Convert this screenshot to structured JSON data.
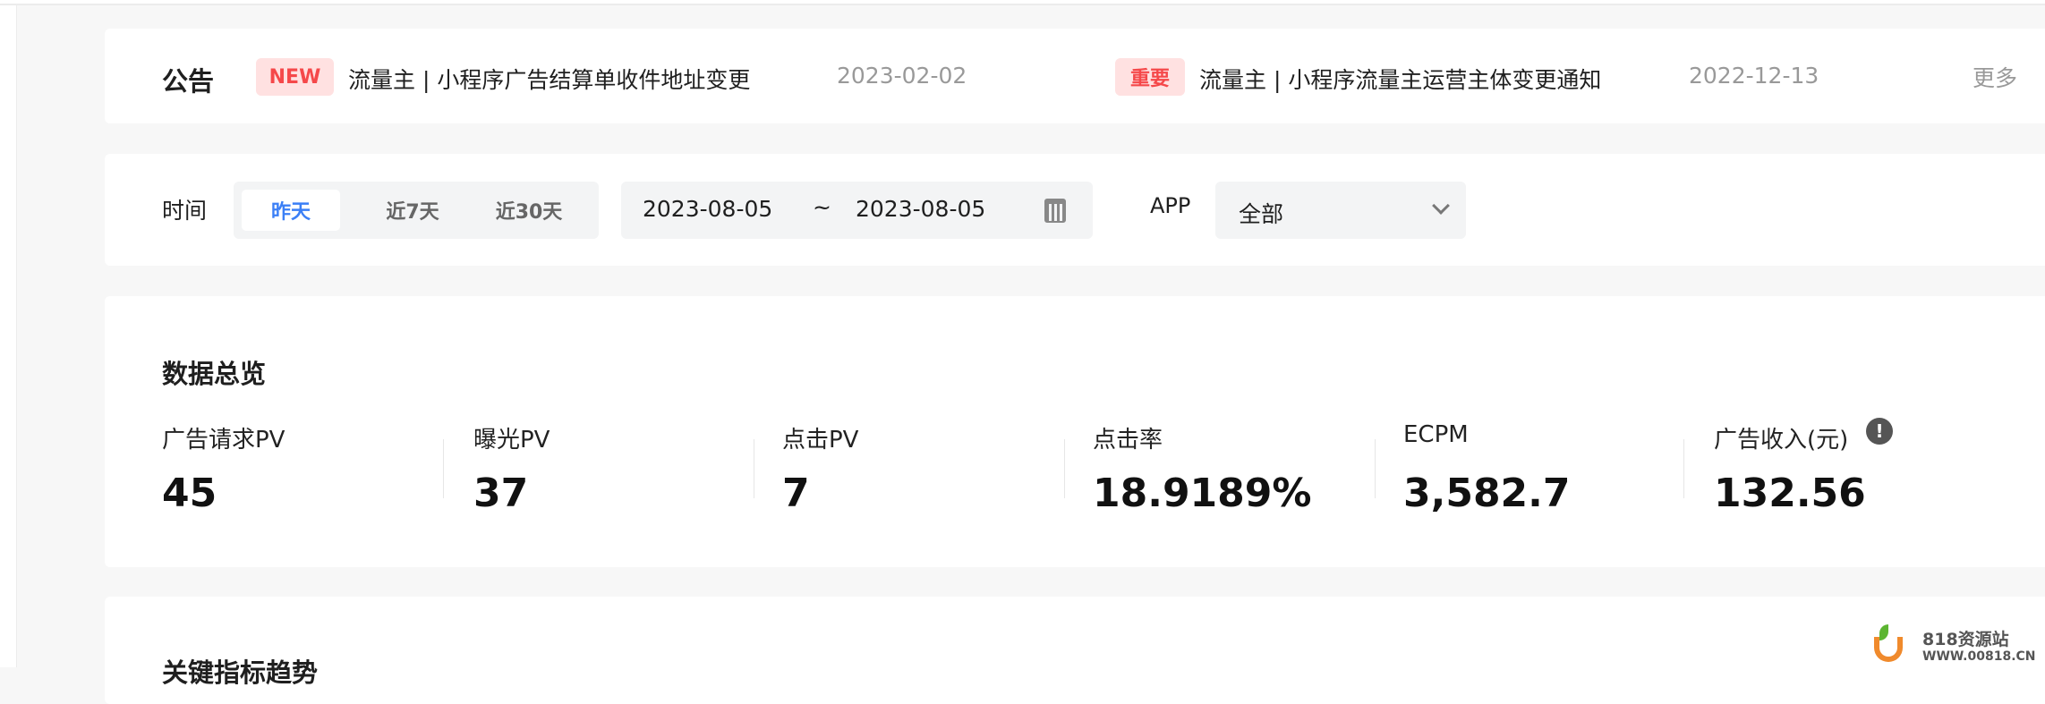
{
  "announcements": {
    "title": "公告",
    "items": [
      {
        "badge": "NEW",
        "badge_color": "#f5484a",
        "text": "流量主 | 小程序广告结算单收件地址变更",
        "date": "2023-02-02"
      },
      {
        "badge": "重要",
        "badge_color": "#f5484a",
        "text": "流量主 | 小程序流量主运营主体变更通知",
        "date": "2022-12-13"
      }
    ],
    "more": "更多"
  },
  "filters": {
    "time_label": "时间",
    "ranges": [
      "昨天",
      "近7天",
      "近30天"
    ],
    "active_range": "昨天",
    "start_date": "2023-08-05",
    "separator": "~",
    "end_date": "2023-08-05",
    "app_label": "APP",
    "app_selected": "全部",
    "accent": "#3b7ff6"
  },
  "overview": {
    "title": "数据总览",
    "stats": [
      {
        "label": "广告请求PV",
        "value": "45"
      },
      {
        "label": "曝光PV",
        "value": "37"
      },
      {
        "label": "点击PV",
        "value": "7"
      },
      {
        "label": "点击率",
        "value": "18.9189%"
      },
      {
        "label": "ECPM",
        "value": "3,582.7"
      },
      {
        "label": "广告收入(元)",
        "value": "132.56"
      }
    ]
  },
  "trend": {
    "title": "关键指标趋势"
  },
  "watermark": {
    "name": "818资源站",
    "url": "WWW.00818.CN"
  }
}
